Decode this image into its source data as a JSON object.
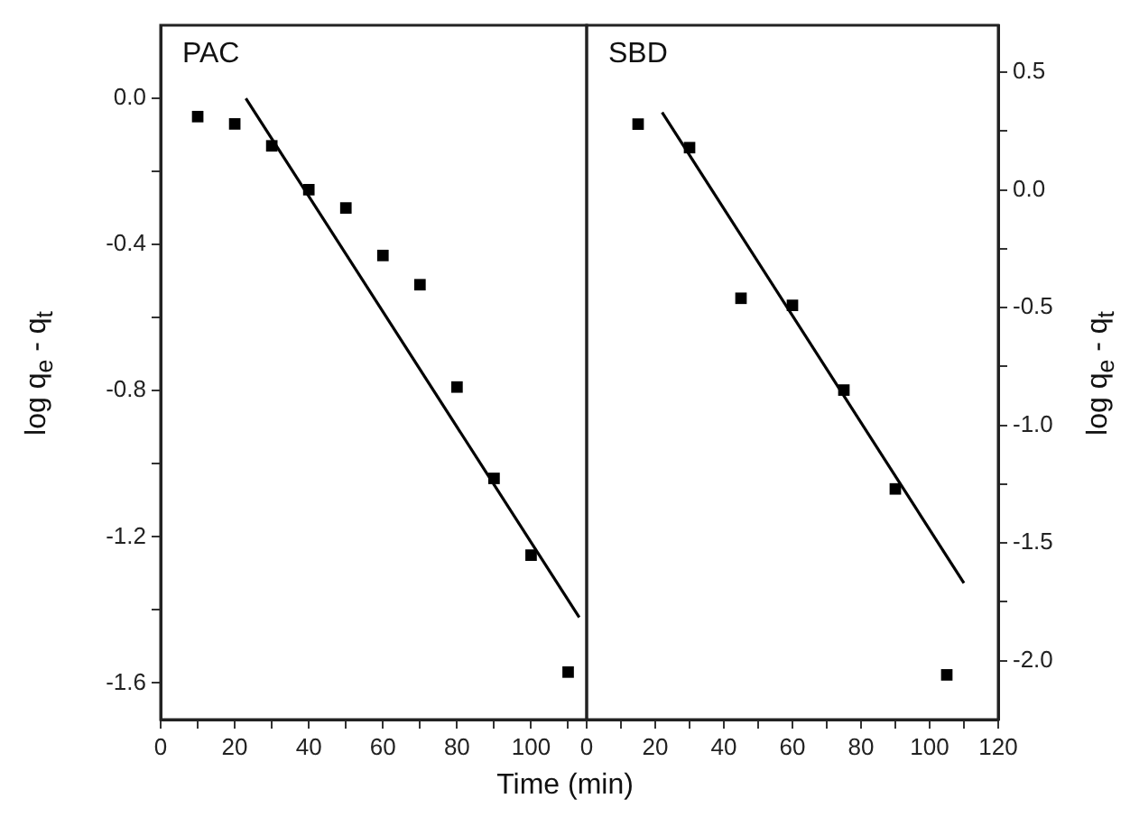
{
  "chart_data": [
    {
      "type": "scatter",
      "xlabel": "Time (min)",
      "ylabel": "log q$_{e}$ - q$_{t}$",
      "annotations": [
        "PAC"
      ],
      "marker": "square",
      "xlim": [
        0,
        115
      ],
      "xticks": [
        0,
        {
          "value": 10,
          "label": null
        },
        20,
        {
          "value": 30,
          "label": null
        },
        40,
        {
          "value": 50,
          "label": null
        },
        60,
        {
          "value": 70,
          "label": null
        },
        80,
        {
          "value": 90,
          "label": null
        },
        100,
        {
          "value": 110,
          "label": null
        }
      ],
      "ylim": [
        -1.7,
        0.2
      ],
      "yticks": [
        {
          "value": 0,
          "label": "0.0"
        },
        {
          "value": -0.2,
          "label": null
        },
        {
          "value": -0.4,
          "label": "-0.4"
        },
        {
          "value": -0.6,
          "label": null
        },
        {
          "value": -0.8,
          "label": "-0.8"
        },
        {
          "value": -1.0,
          "label": null
        },
        {
          "value": -1.2,
          "label": "-1.2"
        },
        {
          "value": -1.4,
          "label": null
        },
        {
          "value": -1.6,
          "label": "-1.6"
        }
      ],
      "series": [
        {
          "color": "#000000",
          "x": [
            10,
            20,
            30,
            40,
            50,
            60,
            70,
            80,
            90,
            100,
            110
          ],
          "values": [
            -0.05,
            -0.07,
            -0.13,
            -0.25,
            -0.3,
            -0.43,
            -0.51,
            -0.79,
            -1.04,
            -1.25,
            -1.57
          ]
        },
        {
          "type": "line",
          "color": "#000000",
          "marker": "none",
          "x": [
            23,
            113
          ],
          "values": [
            0.0,
            -1.42
          ]
        }
      ]
    },
    {
      "type": "scatter",
      "y2label": "log q$_{e}$ - q$_{t}$",
      "annotations": [
        "SBD"
      ],
      "marker": "square",
      "xlim": [
        0,
        120
      ],
      "xticks": [
        0,
        {
          "value": 10,
          "label": null
        },
        20,
        {
          "value": 30,
          "label": null
        },
        40,
        {
          "value": 50,
          "label": null
        },
        60,
        {
          "value": 70,
          "label": null
        },
        80,
        {
          "value": 90,
          "label": null
        },
        100,
        {
          "value": 110,
          "label": null
        },
        120
      ],
      "y2lim": [
        -2.25,
        0.7
      ],
      "y2ticks": [
        0.5,
        {
          "value": 0.25,
          "label": null
        },
        {
          "value": 0,
          "label": "0.0"
        },
        {
          "value": -0.25,
          "label": null
        },
        -0.5,
        {
          "value": -0.75,
          "label": null
        },
        {
          "value": -1.0,
          "label": "-1.0"
        },
        {
          "value": -1.25,
          "label": null
        },
        -1.5,
        {
          "value": -1.75,
          "label": null
        },
        {
          "value": -2.0,
          "label": "-2.0"
        }
      ],
      "series": [
        {
          "axis": "y2",
          "color": "#000000",
          "x": [
            15,
            30,
            45,
            60,
            75,
            90,
            105
          ],
          "values": [
            0.28,
            0.18,
            -0.46,
            -0.49,
            -0.85,
            -1.27,
            -2.06
          ]
        },
        {
          "type": "line",
          "axis": "y2",
          "color": "#000000",
          "marker": "none",
          "x": [
            22,
            110
          ],
          "values": [
            0.33,
            -1.67
          ]
        }
      ]
    }
  ]
}
